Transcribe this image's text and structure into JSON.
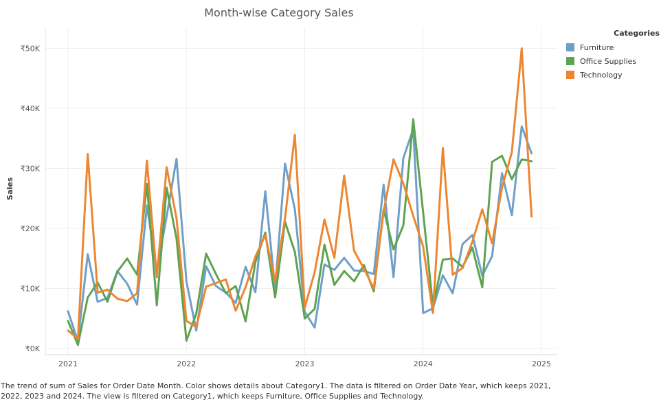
{
  "chart_data": {
    "type": "line",
    "title": "Month-wise Category Sales",
    "xlabel": "",
    "ylabel": "Sales",
    "xlim": [
      "2021-01",
      "2025-01"
    ],
    "x_ticks": [
      "2021",
      "2022",
      "2023",
      "2024",
      "2025"
    ],
    "ylim": [
      0,
      52000
    ],
    "y_ticks": [
      0,
      10000,
      20000,
      30000,
      40000,
      50000
    ],
    "y_tick_labels": [
      "₹0K",
      "₹10K",
      "₹20K",
      "₹30K",
      "₹40K",
      "₹50K"
    ],
    "grid": true,
    "legend_title": "Categories",
    "legend_position": "top-right",
    "x": [
      "2021-01",
      "2021-02",
      "2021-03",
      "2021-04",
      "2021-05",
      "2021-06",
      "2021-07",
      "2021-08",
      "2021-09",
      "2021-10",
      "2021-11",
      "2021-12",
      "2022-01",
      "2022-02",
      "2022-03",
      "2022-04",
      "2022-05",
      "2022-06",
      "2022-07",
      "2022-08",
      "2022-09",
      "2022-10",
      "2022-11",
      "2022-12",
      "2023-01",
      "2023-02",
      "2023-03",
      "2023-04",
      "2023-05",
      "2023-06",
      "2023-07",
      "2023-08",
      "2023-09",
      "2023-10",
      "2023-11",
      "2023-12",
      "2024-01",
      "2024-02",
      "2024-03",
      "2024-04",
      "2024-05",
      "2024-06",
      "2024-07",
      "2024-08",
      "2024-09",
      "2024-10",
      "2024-11",
      "2024-12"
    ],
    "series": [
      {
        "name": "Furniture",
        "color": "#6f9fc9",
        "values": [
          6200,
          1200,
          15700,
          7800,
          8400,
          12900,
          10800,
          7300,
          23800,
          13000,
          22000,
          31600,
          11200,
          3000,
          13700,
          10400,
          9300,
          7600,
          13600,
          9400,
          26200,
          10000,
          30800,
          23200,
          6100,
          3500,
          14000,
          13100,
          15100,
          13000,
          12900,
          12400,
          27300,
          11900,
          31700,
          36600,
          5900,
          6700,
          12200,
          9200,
          17400,
          18900,
          12100,
          15400,
          29200,
          22200,
          37000,
          32500
        ]
      },
      {
        "name": "Office Supplies",
        "color": "#5ea351",
        "values": [
          4600,
          600,
          8500,
          11000,
          7800,
          12800,
          15000,
          12300,
          27400,
          7200,
          26800,
          18300,
          1300,
          5800,
          15800,
          12400,
          9200,
          10400,
          4500,
          14400,
          19300,
          8500,
          21100,
          16100,
          5000,
          6600,
          17300,
          10600,
          12900,
          11200,
          13900,
          9500,
          23200,
          16500,
          20500,
          38200,
          22700,
          7000,
          14800,
          15000,
          13600,
          16800,
          10200,
          31100,
          32100,
          28200,
          31500,
          31200
        ]
      },
      {
        "name": "Technology",
        "color": "#ed8631",
        "values": [
          3000,
          1600,
          32400,
          9300,
          9800,
          8300,
          7900,
          9200,
          31300,
          11900,
          30200,
          21700,
          4600,
          3600,
          10300,
          10900,
          11500,
          6300,
          10200,
          15300,
          18900,
          11200,
          21700,
          35600,
          6800,
          12700,
          21500,
          15100,
          28800,
          16300,
          13300,
          10000,
          22800,
          31500,
          27500,
          22100,
          17000,
          5900,
          33400,
          12300,
          13400,
          17800,
          23200,
          17500,
          26800,
          32700,
          50000,
          22000
        ]
      }
    ]
  },
  "caption": "The trend of sum of Sales for Order Date Month.  Color shows details about Category1. The data is filtered on Order Date Year, which keeps 2021, 2022, 2023 and 2024. The view is filtered on Category1, which keeps Furniture, Office Supplies and Technology."
}
